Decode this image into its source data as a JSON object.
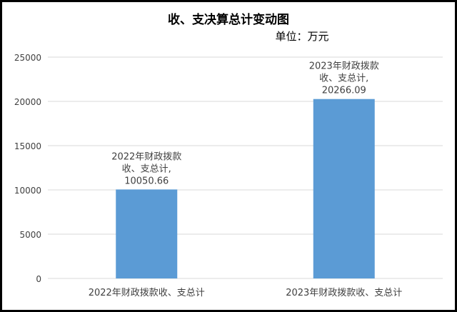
{
  "chart_data": {
    "type": "bar",
    "title": "收、支决算总计变动图",
    "subtitle": "单位：万元",
    "categories": [
      "2022年财政拨款收、支总计",
      "2023年财政拨款收、支总计"
    ],
    "values": [
      10050.66,
      20266.09
    ],
    "data_labels": [
      [
        "2022年财政拨款",
        "收、支总计,",
        "10050.66"
      ],
      [
        "2023年财政拨款",
        "收、支总计,",
        "20266.09"
      ]
    ],
    "ylim": [
      0,
      25000
    ],
    "yticks": [
      "0",
      "5000",
      "10000",
      "15000",
      "20000",
      "25000"
    ],
    "grid": true,
    "legend": "none",
    "colors": {
      "bar": "#5b9bd5",
      "grid": "#d9d9d9",
      "text": "#404040",
      "title": "#000000",
      "frame": "#000000"
    }
  }
}
